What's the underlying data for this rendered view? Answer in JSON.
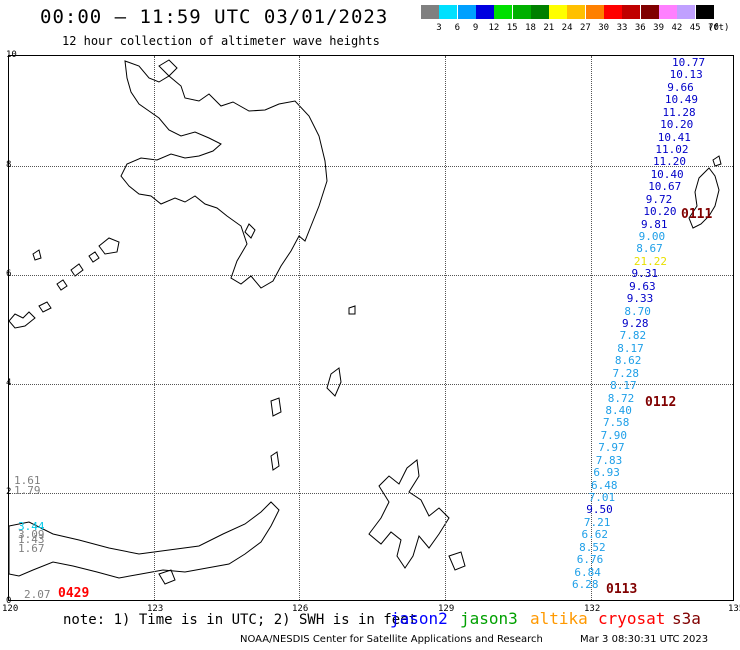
{
  "header": {
    "title": "00:00 – 11:59 UTC 03/01/2023",
    "subtitle": "12 hour collection of altimeter wave heights"
  },
  "legend": {
    "unit": "(ft)",
    "items": [
      {
        "label": "3",
        "color": "#808080"
      },
      {
        "label": "6",
        "color": "#00e0ff"
      },
      {
        "label": "9",
        "color": "#00a0ff"
      },
      {
        "label": "12",
        "color": "#0000e0"
      },
      {
        "label": "15",
        "color": "#00e000"
      },
      {
        "label": "18",
        "color": "#00b000"
      },
      {
        "label": "21",
        "color": "#008000"
      },
      {
        "label": "24",
        "color": "#ffff00"
      },
      {
        "label": "27",
        "color": "#ffc000"
      },
      {
        "label": "30",
        "color": "#ff8000"
      },
      {
        "label": "33",
        "color": "#ff0000"
      },
      {
        "label": "36",
        "color": "#c00000"
      },
      {
        "label": "39",
        "color": "#800000"
      },
      {
        "label": "42",
        "color": "#ff80ff"
      },
      {
        "label": "45",
        "color": "#c0a0ff"
      },
      {
        "label": "70",
        "color": "#000000"
      }
    ]
  },
  "axes": {
    "longitudes": [
      "120",
      "123",
      "126",
      "129",
      "132",
      "135"
    ],
    "latitudes": [
      "10",
      "8",
      "6",
      "4",
      "2",
      "0"
    ]
  },
  "wave_heights": [
    {
      "value": "10.77",
      "color": "#0000c8"
    },
    {
      "value": "10.13",
      "color": "#0000c8"
    },
    {
      "value": "9.66",
      "color": "#0000c8"
    },
    {
      "value": "10.49",
      "color": "#0000c8"
    },
    {
      "value": "11.28",
      "color": "#0000c8"
    },
    {
      "value": "10.20",
      "color": "#0000c8"
    },
    {
      "value": "10.41",
      "color": "#0000c8"
    },
    {
      "value": "11.02",
      "color": "#0000c8"
    },
    {
      "value": "11.20",
      "color": "#0000c8"
    },
    {
      "value": "10.40",
      "color": "#0000c8"
    },
    {
      "value": "10.67",
      "color": "#0000c8"
    },
    {
      "value": "9.72",
      "color": "#0000c8"
    },
    {
      "value": "10.20",
      "color": "#0000c8"
    },
    {
      "value": "9.81",
      "color": "#0000c8"
    },
    {
      "value": "9.00",
      "color": "#1e9fe8"
    },
    {
      "value": "8.67",
      "color": "#1e9fe8"
    },
    {
      "value": "21.22",
      "color": "#e8e000"
    },
    {
      "value": "9.31",
      "color": "#0000c8"
    },
    {
      "value": "9.63",
      "color": "#0000c8"
    },
    {
      "value": "9.33",
      "color": "#0000c8"
    },
    {
      "value": "8.70",
      "color": "#1e9fe8"
    },
    {
      "value": "9.28",
      "color": "#0000c8"
    },
    {
      "value": "7.82",
      "color": "#1e9fe8"
    },
    {
      "value": "8.17",
      "color": "#1e9fe8"
    },
    {
      "value": "8.62",
      "color": "#1e9fe8"
    },
    {
      "value": "7.28",
      "color": "#1e9fe8"
    },
    {
      "value": "8.17",
      "color": "#1e9fe8"
    },
    {
      "value": "8.72",
      "color": "#1e9fe8"
    },
    {
      "value": "8.40",
      "color": "#1e9fe8"
    },
    {
      "value": "7.58",
      "color": "#1e9fe8"
    },
    {
      "value": "7.90",
      "color": "#1e9fe8"
    },
    {
      "value": "7.97",
      "color": "#1e9fe8"
    },
    {
      "value": "7.83",
      "color": "#1e9fe8"
    },
    {
      "value": "6.93",
      "color": "#1e9fe8"
    },
    {
      "value": "6.48",
      "color": "#1e9fe8"
    },
    {
      "value": "7.01",
      "color": "#1e9fe8"
    },
    {
      "value": "9.50",
      "color": "#0000c8"
    },
    {
      "value": "7.21",
      "color": "#1e9fe8"
    },
    {
      "value": "6.62",
      "color": "#1e9fe8"
    },
    {
      "value": "8.52",
      "color": "#1e9fe8"
    },
    {
      "value": "6.76",
      "color": "#1e9fe8"
    },
    {
      "value": "6.84",
      "color": "#1e9fe8"
    },
    {
      "value": "6.28",
      "color": "#1e9fe8"
    }
  ],
  "west_values": [
    {
      "value": "1.61",
      "color": "#808080"
    },
    {
      "value": "1.79",
      "color": "#808080"
    },
    {
      "value": "3.44",
      "color": "#00c8e8"
    },
    {
      "value": "3.09",
      "color": "#808080"
    },
    {
      "value": "1.43",
      "color": "#808080"
    },
    {
      "value": "1.67",
      "color": "#808080"
    },
    {
      "value": "2.07",
      "color": "#808080"
    }
  ],
  "track_times": [
    {
      "label": "0111",
      "color": "#800000"
    },
    {
      "label": "0112",
      "color": "#800000"
    },
    {
      "label": "0113",
      "color": "#800000"
    },
    {
      "label": "0429",
      "color": "#ff0000"
    }
  ],
  "footer": {
    "note": "note: 1) Time is in UTC; 2) SWH is in feet",
    "satellites": [
      {
        "name": "jason2",
        "color": "#0000ff"
      },
      {
        "name": "jason3",
        "color": "#00a000"
      },
      {
        "name": "altika",
        "color": "#ff9900"
      },
      {
        "name": "cryosat",
        "color": "#ff0000"
      },
      {
        "name": "s3a",
        "color": "#800000"
      }
    ],
    "credit": "NOAA/NESDIS Center for Satellite Applications and Research",
    "timestamp": "Mar  3 08:30:31 UTC 2023"
  }
}
